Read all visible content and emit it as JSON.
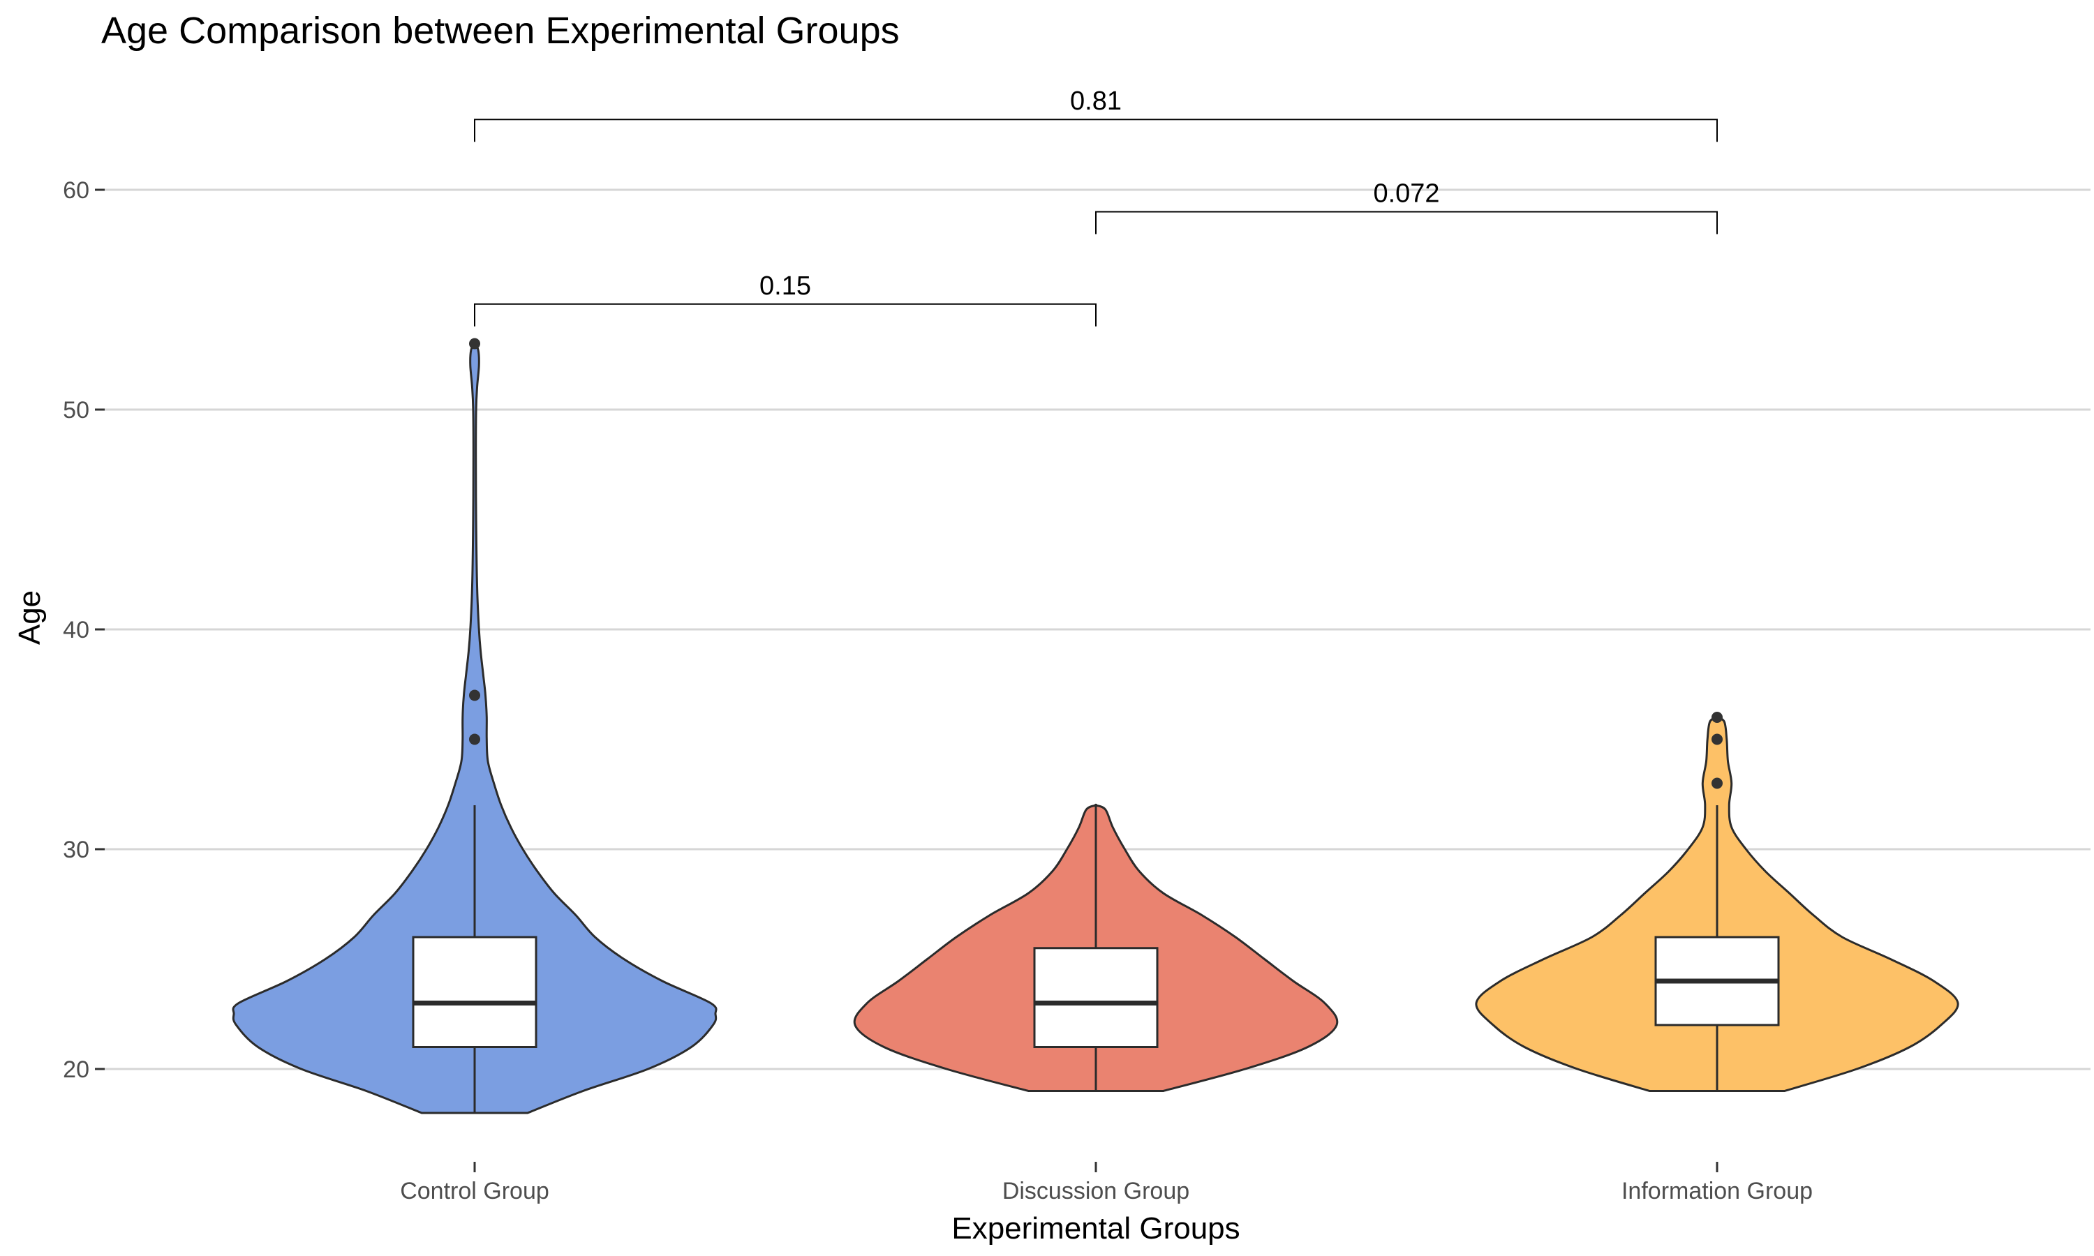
{
  "chart_data": {
    "type": "violin",
    "title": "Age Comparison between Experimental Groups",
    "xlabel": "Experimental Groups",
    "ylabel": "Age",
    "ylim": [
      16,
      64
    ],
    "yticks": [
      20,
      30,
      40,
      50,
      60
    ],
    "grid": "horizontal-major",
    "legend": "none",
    "categories": [
      "Control Group",
      "Discussion Group",
      "Information Group"
    ],
    "series": [
      {
        "category": "Control Group",
        "color": "#7b9ee1",
        "range": [
          18,
          53
        ],
        "box": {
          "min": 18,
          "q1": 21,
          "median": 23,
          "q3": 26,
          "max": 32
        },
        "outliers": [
          35,
          37,
          53
        ],
        "density": [
          [
            18,
            0.22
          ],
          [
            19,
            0.45
          ],
          [
            20,
            0.72
          ],
          [
            21,
            0.9
          ],
          [
            22,
            0.99
          ],
          [
            22.5,
            1.0
          ],
          [
            23,
            0.98
          ],
          [
            24,
            0.78
          ],
          [
            25,
            0.62
          ],
          [
            26,
            0.5
          ],
          [
            27,
            0.42
          ],
          [
            28,
            0.33
          ],
          [
            29,
            0.26
          ],
          [
            30,
            0.2
          ],
          [
            31,
            0.15
          ],
          [
            32,
            0.11
          ],
          [
            33,
            0.08
          ],
          [
            34,
            0.055
          ],
          [
            35,
            0.05
          ],
          [
            36,
            0.05
          ],
          [
            37,
            0.045
          ],
          [
            38,
            0.035
          ],
          [
            39,
            0.025
          ],
          [
            40,
            0.018
          ],
          [
            42,
            0.01
          ],
          [
            45,
            0.006
          ],
          [
            48,
            0.005
          ],
          [
            50,
            0.006
          ],
          [
            51,
            0.01
          ],
          [
            52,
            0.018
          ],
          [
            52.7,
            0.015
          ],
          [
            53,
            0.0
          ]
        ]
      },
      {
        "category": "Discussion Group",
        "color": "#ea8370",
        "range": [
          19,
          32
        ],
        "box": {
          "min": 19,
          "q1": 21,
          "median": 23,
          "q3": 25.5,
          "max": 32
        },
        "outliers": [],
        "density": [
          [
            19,
            0.28
          ],
          [
            20,
            0.62
          ],
          [
            21,
            0.88
          ],
          [
            22,
            1.0
          ],
          [
            23,
            0.95
          ],
          [
            24,
            0.82
          ],
          [
            25,
            0.7
          ],
          [
            26,
            0.58
          ],
          [
            27,
            0.44
          ],
          [
            28,
            0.28
          ],
          [
            29,
            0.18
          ],
          [
            30,
            0.12
          ],
          [
            31,
            0.07
          ],
          [
            31.8,
            0.04
          ],
          [
            32,
            0.0
          ]
        ]
      },
      {
        "category": "Information Group",
        "color": "#fdc167",
        "range": [
          19,
          36
        ],
        "box": {
          "min": 19,
          "q1": 22,
          "median": 24,
          "q3": 26,
          "max": 32
        },
        "outliers": [
          33,
          35,
          36
        ],
        "density": [
          [
            19,
            0.28
          ],
          [
            20,
            0.58
          ],
          [
            21,
            0.8
          ],
          [
            22,
            0.93
          ],
          [
            23,
            1.0
          ],
          [
            24,
            0.9
          ],
          [
            25,
            0.72
          ],
          [
            26,
            0.52
          ],
          [
            27,
            0.4
          ],
          [
            28,
            0.3
          ],
          [
            29,
            0.2
          ],
          [
            30,
            0.12
          ],
          [
            31,
            0.06
          ],
          [
            32,
            0.05
          ],
          [
            33,
            0.06
          ],
          [
            34,
            0.045
          ],
          [
            35,
            0.04
          ],
          [
            35.8,
            0.03
          ],
          [
            36,
            0.0
          ]
        ]
      }
    ],
    "comparisons": [
      {
        "from": "Control Group",
        "to": "Discussion Group",
        "label": "0.15",
        "y": 54.8
      },
      {
        "from": "Discussion Group",
        "to": "Information Group",
        "label": "0.072",
        "y": 59.0
      },
      {
        "from": "Control Group",
        "to": "Information Group",
        "label": "0.81",
        "y": 63.2
      }
    ]
  }
}
